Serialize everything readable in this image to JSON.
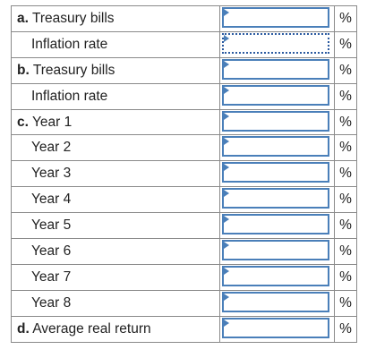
{
  "rows": [
    {
      "letter": "a.",
      "label": "Treasury bills",
      "indent": false,
      "unit": "%",
      "value": ""
    },
    {
      "letter": "",
      "label": "Inflation rate",
      "indent": true,
      "unit": "%",
      "value": "",
      "focused": true
    },
    {
      "letter": "b.",
      "label": "Treasury bills",
      "indent": false,
      "unit": "%",
      "value": ""
    },
    {
      "letter": "",
      "label": "Inflation rate",
      "indent": true,
      "unit": "%",
      "value": ""
    },
    {
      "letter": "c.",
      "label": "Year 1",
      "indent": false,
      "unit": "%",
      "value": ""
    },
    {
      "letter": "",
      "label": "Year 2",
      "indent": true,
      "unit": "%",
      "value": ""
    },
    {
      "letter": "",
      "label": "Year 3",
      "indent": true,
      "unit": "%",
      "value": ""
    },
    {
      "letter": "",
      "label": "Year 4",
      "indent": true,
      "unit": "%",
      "value": ""
    },
    {
      "letter": "",
      "label": "Year 5",
      "indent": true,
      "unit": "%",
      "value": ""
    },
    {
      "letter": "",
      "label": "Year 6",
      "indent": true,
      "unit": "%",
      "value": ""
    },
    {
      "letter": "",
      "label": "Year 7",
      "indent": true,
      "unit": "%",
      "value": ""
    },
    {
      "letter": "",
      "label": "Year 8",
      "indent": true,
      "unit": "%",
      "value": ""
    },
    {
      "letter": "d.",
      "label": "Average real return",
      "indent": false,
      "unit": "%",
      "value": ""
    }
  ],
  "colors": {
    "input_border": "#4a7fb9",
    "grid_line": "#8a8a8a",
    "text": "#222222"
  }
}
